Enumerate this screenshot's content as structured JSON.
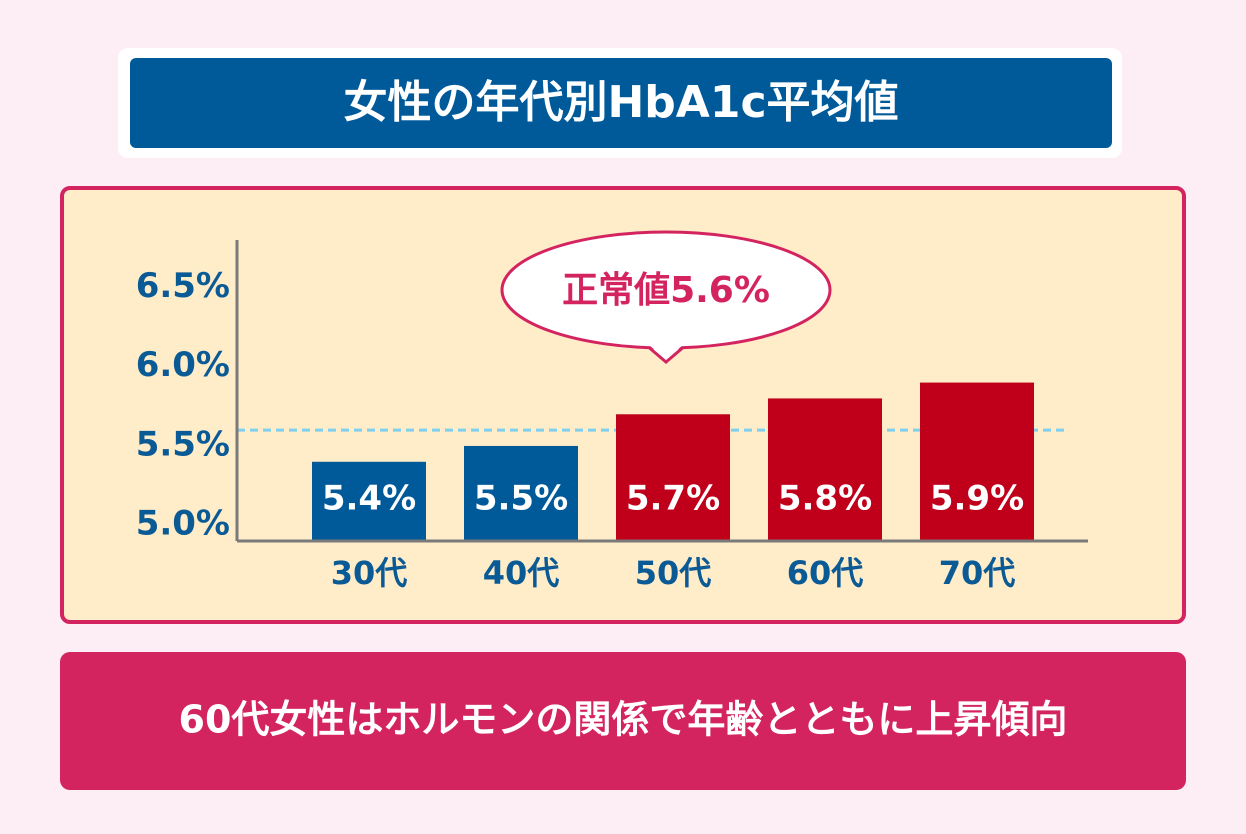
{
  "chart_data": {
    "type": "bar",
    "title": "女性の年代別HbA1c平均値",
    "categories": [
      "30代",
      "40代",
      "50代",
      "60代",
      "70代"
    ],
    "values": [
      5.4,
      5.5,
      5.7,
      5.8,
      5.9
    ],
    "value_labels": [
      "5.4%",
      "5.5%",
      "5.7%",
      "5.8%",
      "5.9%"
    ],
    "colors": [
      "#005a9a",
      "#005a9a",
      "#c0001a",
      "#c0001a",
      "#c0001a"
    ],
    "ylim": [
      4.9,
      6.8
    ],
    "yticks": [
      {
        "value": 5.0,
        "label": "5.0%"
      },
      {
        "value": 5.5,
        "label": "5.5%"
      },
      {
        "value": 6.0,
        "label": "6.0%"
      },
      {
        "value": 6.5,
        "label": "6.5%"
      }
    ],
    "reference_line": {
      "value": 5.6,
      "label": "正常値5.6%",
      "color": "#7fd0ee"
    },
    "caption": "60代女性はホルモンの関係で年齢とともに上昇傾向"
  }
}
